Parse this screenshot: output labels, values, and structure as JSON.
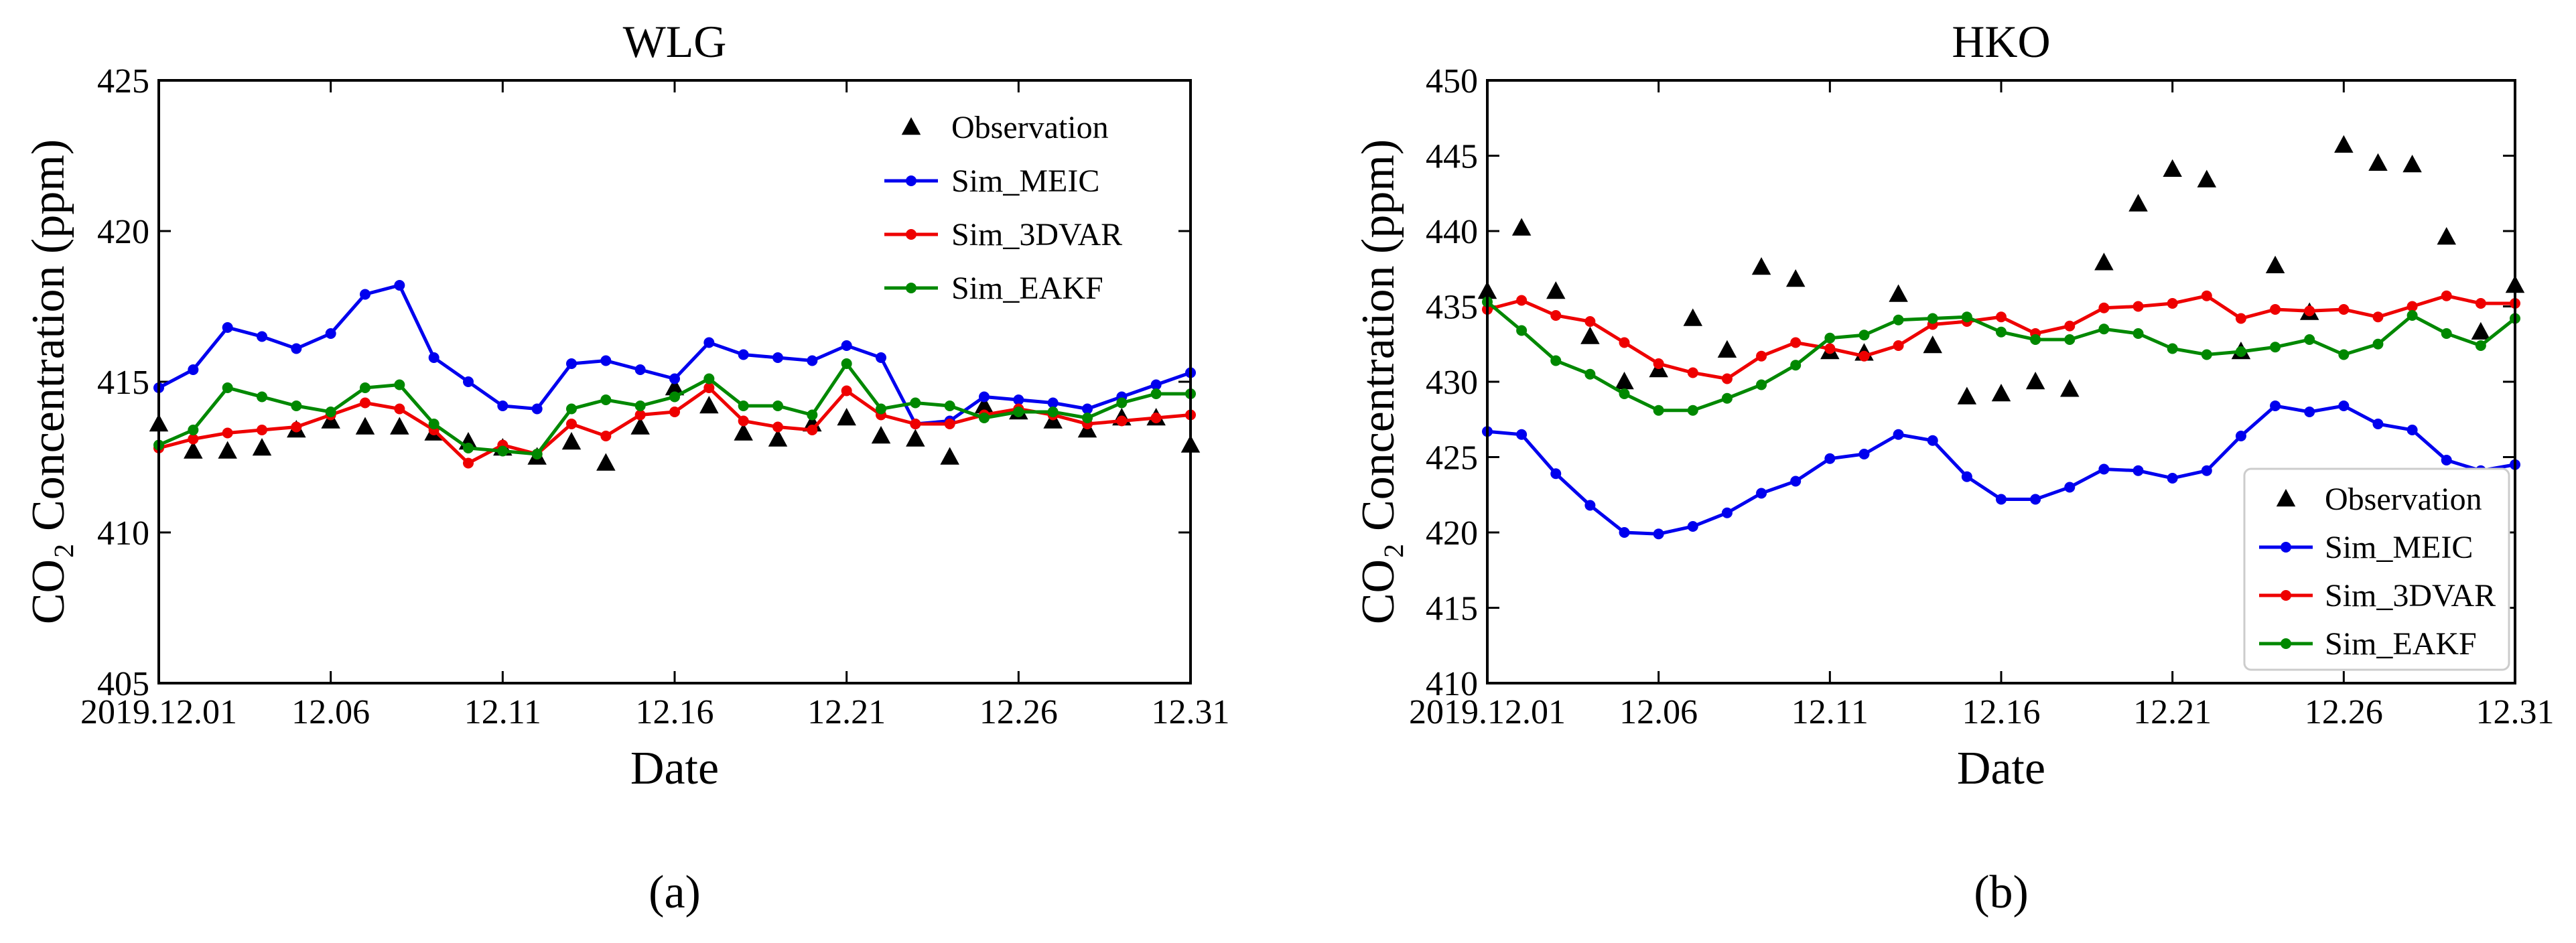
{
  "chart_data": [
    {
      "type": "line",
      "panel_label": "(a)",
      "title": "WLG",
      "xlabel": "Date",
      "ylabel": "CO₂ Concentration (ppm)",
      "xlim": [
        1,
        31
      ],
      "ylim": [
        405,
        425
      ],
      "xticks": [
        1,
        6,
        11,
        16,
        21,
        26,
        31
      ],
      "xtick_labels": [
        "2019.12.01",
        "12.06",
        "12.11",
        "12.16",
        "12.21",
        "12.26",
        "12.31"
      ],
      "yticks": [
        405,
        410,
        415,
        420,
        425
      ],
      "legend_position": "top-right",
      "colors": {
        "Observation": "#000000",
        "Sim_MEIC": "#0000ee",
        "Sim_3DVAR": "#ee0000",
        "Sim_EAKF": "#008800"
      },
      "series": [
        {
          "name": "Observation",
          "marker": "triangle",
          "x": [
            1,
            2,
            3,
            4,
            5,
            6,
            7,
            8,
            9,
            10,
            11,
            12,
            13,
            14,
            15,
            16,
            17,
            18,
            19,
            20,
            21,
            22,
            23,
            24,
            25,
            26,
            27,
            28,
            29,
            30,
            31
          ],
          "values": [
            413.6,
            412.7,
            412.7,
            412.8,
            413.4,
            413.7,
            413.5,
            413.5,
            413.3,
            413.0,
            412.8,
            412.5,
            413.0,
            412.3,
            413.5,
            414.8,
            414.2,
            413.3,
            413.1,
            413.6,
            413.8,
            413.2,
            413.1,
            412.5,
            414.2,
            414.0,
            413.7,
            413.4,
            413.8,
            413.8,
            412.9
          ]
        },
        {
          "name": "Sim_MEIC",
          "marker": "circle",
          "x": [
            1,
            2,
            3,
            4,
            5,
            6,
            7,
            8,
            9,
            10,
            11,
            12,
            13,
            14,
            15,
            16,
            17,
            18,
            19,
            20,
            21,
            22,
            23,
            24,
            25,
            26,
            27,
            28,
            29,
            30,
            31
          ],
          "values": [
            414.8,
            415.4,
            416.8,
            416.5,
            416.1,
            416.6,
            417.9,
            418.2,
            415.8,
            415.0,
            414.2,
            414.1,
            415.6,
            415.7,
            415.4,
            415.1,
            416.3,
            415.9,
            415.8,
            415.7,
            416.2,
            415.8,
            413.6,
            413.7,
            414.5,
            414.4,
            414.3,
            414.1,
            414.5,
            414.9,
            415.3
          ]
        },
        {
          "name": "Sim_3DVAR",
          "marker": "circle",
          "x": [
            1,
            2,
            3,
            4,
            5,
            6,
            7,
            8,
            9,
            10,
            11,
            12,
            13,
            14,
            15,
            16,
            17,
            18,
            19,
            20,
            21,
            22,
            23,
            24,
            25,
            26,
            27,
            28,
            29,
            30,
            31
          ],
          "values": [
            412.8,
            413.1,
            413.3,
            413.4,
            413.5,
            413.9,
            414.3,
            414.1,
            413.4,
            412.3,
            412.9,
            412.6,
            413.6,
            413.2,
            413.9,
            414.0,
            414.8,
            413.7,
            413.5,
            413.4,
            414.7,
            413.9,
            413.6,
            413.6,
            413.9,
            414.1,
            413.9,
            413.6,
            413.7,
            413.8,
            413.9
          ]
        },
        {
          "name": "Sim_EAKF",
          "marker": "circle",
          "x": [
            1,
            2,
            3,
            4,
            5,
            6,
            7,
            8,
            9,
            10,
            11,
            12,
            13,
            14,
            15,
            16,
            17,
            18,
            19,
            20,
            21,
            22,
            23,
            24,
            25,
            26,
            27,
            28,
            29,
            30,
            31
          ],
          "values": [
            412.9,
            413.4,
            414.8,
            414.5,
            414.2,
            414.0,
            414.8,
            414.9,
            413.6,
            412.8,
            412.7,
            412.6,
            414.1,
            414.4,
            414.2,
            414.5,
            415.1,
            414.2,
            414.2,
            413.9,
            415.6,
            414.1,
            414.3,
            414.2,
            413.8,
            414.0,
            414.0,
            413.8,
            414.3,
            414.6,
            414.6
          ]
        }
      ]
    },
    {
      "type": "line",
      "panel_label": "(b)",
      "title": "HKO",
      "xlabel": "Date",
      "ylabel": "CO₂ Concentration (ppm)",
      "xlim": [
        1,
        31
      ],
      "ylim": [
        410,
        450
      ],
      "xticks": [
        1,
        6,
        11,
        16,
        21,
        26,
        31
      ],
      "xtick_labels": [
        "2019.12.01",
        "12.06",
        "12.11",
        "12.16",
        "12.21",
        "12.26",
        "12.31"
      ],
      "yticks": [
        410,
        415,
        420,
        425,
        430,
        435,
        440,
        445,
        450
      ],
      "legend_position": "bottom-right",
      "colors": {
        "Observation": "#000000",
        "Sim_MEIC": "#0000ee",
        "Sim_3DVAR": "#ee0000",
        "Sim_EAKF": "#008800"
      },
      "series": [
        {
          "name": "Observation",
          "marker": "triangle",
          "x": [
            1,
            2,
            3,
            4,
            5,
            6,
            7,
            8,
            9,
            10,
            11,
            12,
            13,
            14,
            15,
            16,
            17,
            18,
            19,
            20,
            21,
            22,
            23,
            24,
            25,
            26,
            27,
            28,
            29,
            30,
            31
          ],
          "values": [
            436.0,
            440.2,
            436.0,
            433.0,
            430.0,
            430.8,
            434.2,
            432.1,
            437.6,
            436.8,
            432.0,
            431.9,
            435.8,
            432.4,
            429.0,
            429.2,
            430.0,
            429.5,
            437.9,
            441.8,
            444.1,
            443.4,
            432.0,
            437.7,
            434.6,
            445.7,
            444.5,
            444.4,
            439.6,
            433.3,
            436.4
          ]
        },
        {
          "name": "Sim_MEIC",
          "marker": "circle",
          "x": [
            1,
            2,
            3,
            4,
            5,
            6,
            7,
            8,
            9,
            10,
            11,
            12,
            13,
            14,
            15,
            16,
            17,
            18,
            19,
            20,
            21,
            22,
            23,
            24,
            25,
            26,
            27,
            28,
            29,
            30,
            31
          ],
          "values": [
            426.7,
            426.5,
            423.9,
            421.8,
            420.0,
            419.9,
            420.4,
            421.3,
            422.6,
            423.4,
            424.9,
            425.2,
            426.5,
            426.1,
            423.7,
            422.2,
            422.2,
            423.0,
            424.2,
            424.1,
            423.6,
            424.1,
            426.4,
            428.4,
            428.0,
            428.4,
            427.2,
            426.8,
            424.8,
            424.1,
            424.5
          ]
        },
        {
          "name": "Sim_3DVAR",
          "marker": "circle",
          "x": [
            1,
            2,
            3,
            4,
            5,
            6,
            7,
            8,
            9,
            10,
            11,
            12,
            13,
            14,
            15,
            16,
            17,
            18,
            19,
            20,
            21,
            22,
            23,
            24,
            25,
            26,
            27,
            28,
            29,
            30,
            31
          ],
          "values": [
            434.8,
            435.4,
            434.4,
            434.0,
            432.6,
            431.2,
            430.6,
            430.2,
            431.7,
            432.6,
            432.2,
            431.7,
            432.4,
            433.8,
            434.0,
            434.3,
            433.2,
            433.7,
            434.9,
            435.0,
            435.2,
            435.7,
            434.2,
            434.8,
            434.7,
            434.8,
            434.3,
            435.0,
            435.7,
            435.2,
            435.2
          ]
        },
        {
          "name": "Sim_EAKF",
          "marker": "circle",
          "x": [
            1,
            2,
            3,
            4,
            5,
            6,
            7,
            8,
            9,
            10,
            11,
            12,
            13,
            14,
            15,
            16,
            17,
            18,
            19,
            20,
            21,
            22,
            23,
            24,
            25,
            26,
            27,
            28,
            29,
            30,
            31
          ],
          "values": [
            435.3,
            433.4,
            431.4,
            430.5,
            429.2,
            428.1,
            428.1,
            428.9,
            429.8,
            431.1,
            432.9,
            433.1,
            434.1,
            434.2,
            434.3,
            433.3,
            432.8,
            432.8,
            433.5,
            433.2,
            432.2,
            431.8,
            432.0,
            432.3,
            432.8,
            431.8,
            432.5,
            434.4,
            433.2,
            432.4,
            434.2
          ]
        }
      ]
    }
  ]
}
